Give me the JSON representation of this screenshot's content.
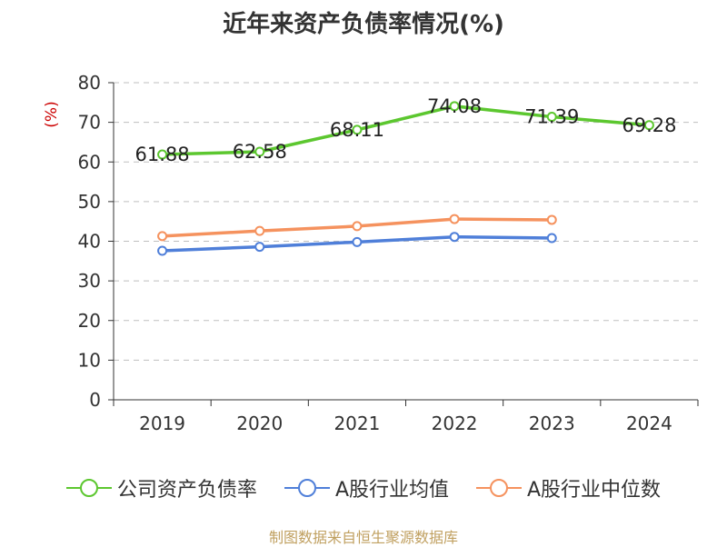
{
  "chart_data": {
    "type": "line",
    "title": "近年来资产负债率情况(%)",
    "ylabel": "(%)",
    "xlabel": "",
    "categories": [
      "2019",
      "2020",
      "2021",
      "2022",
      "2023",
      "2024"
    ],
    "ylim": [
      0,
      80
    ],
    "yticks": [
      "0",
      "10",
      "20",
      "30",
      "40",
      "50",
      "60",
      "70",
      "80"
    ],
    "grid": true,
    "legend_position": "bottom",
    "series": [
      {
        "name": "公司资产负债率",
        "color": "#5cc72f",
        "values": [
          61.88,
          62.58,
          68.11,
          74.08,
          71.39,
          69.28
        ],
        "labels": [
          "61.88",
          "62.58",
          "68.11",
          "74.08",
          "71.39",
          "69.28"
        ]
      },
      {
        "name": "A股行业均值",
        "color": "#4f7fd9",
        "values": [
          37.6,
          38.6,
          39.8,
          41.1,
          40.8,
          null
        ]
      },
      {
        "name": "A股行业中位数",
        "color": "#f5925e",
        "values": [
          41.3,
          42.6,
          43.8,
          45.6,
          45.4,
          null
        ]
      }
    ]
  },
  "source": "制图数据来自恒生聚源数据库"
}
